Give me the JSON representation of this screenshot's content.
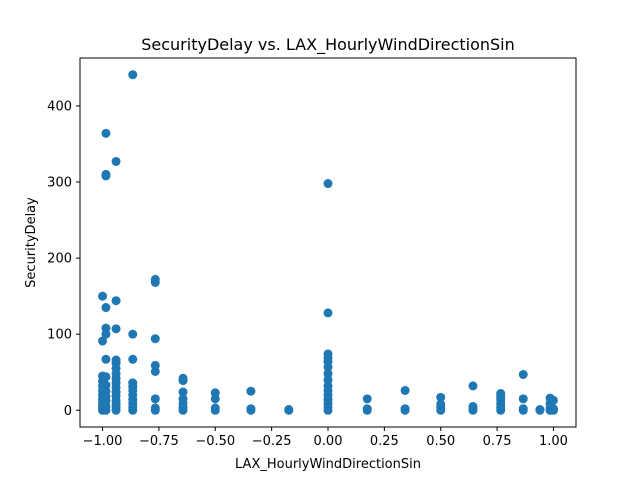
{
  "chart_data": {
    "type": "scatter",
    "title": "SecurityDelay vs. LAX_HourlyWindDirectionSin",
    "xlabel": "LAX_HourlyWindDirectionSin",
    "ylabel": "SecurityDelay",
    "xlim": [
      -1.1,
      1.1
    ],
    "ylim": [
      -22,
      463
    ],
    "xticks": [
      -1.0,
      -0.75,
      -0.5,
      -0.25,
      0.0,
      0.25,
      0.5,
      0.75,
      1.0
    ],
    "xtick_labels": [
      "−1.00",
      "−0.75",
      "−0.50",
      "−0.25",
      "0.00",
      "0.25",
      "0.50",
      "0.75",
      "1.00"
    ],
    "yticks": [
      0,
      100,
      200,
      300,
      400
    ],
    "ytick_labels": [
      "0",
      "100",
      "200",
      "300",
      "400"
    ],
    "grid": false,
    "legend": "none",
    "point_color": "#1f77b4",
    "series": [
      {
        "points": [
          [
            -1.0,
            0
          ],
          [
            -1.0,
            3
          ],
          [
            -1.0,
            6
          ],
          [
            -1.0,
            10
          ],
          [
            -1.0,
            15
          ],
          [
            -1.0,
            20
          ],
          [
            -1.0,
            26
          ],
          [
            -1.0,
            32
          ],
          [
            -1.0,
            38
          ],
          [
            -1.0,
            45
          ],
          [
            -1.0,
            91
          ],
          [
            -1.0,
            150
          ],
          [
            -0.985,
            0
          ],
          [
            -0.985,
            5
          ],
          [
            -0.985,
            12
          ],
          [
            -0.985,
            18
          ],
          [
            -0.985,
            25
          ],
          [
            -0.985,
            33
          ],
          [
            -0.985,
            44
          ],
          [
            -0.985,
            67
          ],
          [
            -0.985,
            100
          ],
          [
            -0.985,
            108
          ],
          [
            -0.985,
            135
          ],
          [
            -0.985,
            308
          ],
          [
            -0.985,
            310
          ],
          [
            -0.985,
            364
          ],
          [
            -0.94,
            0
          ],
          [
            -0.94,
            4
          ],
          [
            -0.94,
            8
          ],
          [
            -0.94,
            13
          ],
          [
            -0.94,
            19
          ],
          [
            -0.94,
            24
          ],
          [
            -0.94,
            30
          ],
          [
            -0.94,
            36
          ],
          [
            -0.94,
            42
          ],
          [
            -0.94,
            48
          ],
          [
            -0.94,
            55
          ],
          [
            -0.94,
            62
          ],
          [
            -0.94,
            66
          ],
          [
            -0.94,
            107
          ],
          [
            -0.94,
            144
          ],
          [
            -0.94,
            327
          ],
          [
            -0.866,
            0
          ],
          [
            -0.866,
            4
          ],
          [
            -0.866,
            9
          ],
          [
            -0.866,
            14
          ],
          [
            -0.866,
            20
          ],
          [
            -0.866,
            26
          ],
          [
            -0.866,
            31
          ],
          [
            -0.866,
            36
          ],
          [
            -0.866,
            67
          ],
          [
            -0.866,
            100
          ],
          [
            -0.866,
            441
          ],
          [
            -0.766,
            0
          ],
          [
            -0.766,
            3
          ],
          [
            -0.766,
            15
          ],
          [
            -0.766,
            51
          ],
          [
            -0.766,
            59
          ],
          [
            -0.766,
            94
          ],
          [
            -0.766,
            168
          ],
          [
            -0.766,
            172
          ],
          [
            -0.643,
            0
          ],
          [
            -0.643,
            4
          ],
          [
            -0.643,
            9
          ],
          [
            -0.643,
            15
          ],
          [
            -0.643,
            24
          ],
          [
            -0.643,
            39
          ],
          [
            -0.643,
            42
          ],
          [
            -0.5,
            0
          ],
          [
            -0.5,
            3
          ],
          [
            -0.5,
            15
          ],
          [
            -0.5,
            23
          ],
          [
            -0.342,
            0
          ],
          [
            -0.342,
            2
          ],
          [
            -0.342,
            25
          ],
          [
            -0.174,
            0
          ],
          [
            -0.174,
            1
          ],
          [
            0.0,
            0
          ],
          [
            0.0,
            4
          ],
          [
            0.0,
            9
          ],
          [
            0.0,
            14
          ],
          [
            0.0,
            20
          ],
          [
            0.0,
            26
          ],
          [
            0.0,
            32
          ],
          [
            0.0,
            40
          ],
          [
            0.0,
            48
          ],
          [
            0.0,
            57
          ],
          [
            0.0,
            64
          ],
          [
            0.0,
            69
          ],
          [
            0.0,
            74
          ],
          [
            0.0,
            128
          ],
          [
            0.0,
            298
          ],
          [
            0.174,
            0
          ],
          [
            0.174,
            2
          ],
          [
            0.174,
            15
          ],
          [
            0.342,
            0
          ],
          [
            0.342,
            2
          ],
          [
            0.342,
            26
          ],
          [
            0.5,
            0
          ],
          [
            0.5,
            4
          ],
          [
            0.5,
            8
          ],
          [
            0.5,
            17
          ],
          [
            0.643,
            0
          ],
          [
            0.643,
            2
          ],
          [
            0.643,
            5
          ],
          [
            0.643,
            32
          ],
          [
            0.766,
            0
          ],
          [
            0.766,
            4
          ],
          [
            0.766,
            9
          ],
          [
            0.766,
            14
          ],
          [
            0.766,
            18
          ],
          [
            0.766,
            22
          ],
          [
            0.866,
            0
          ],
          [
            0.866,
            2
          ],
          [
            0.866,
            15
          ],
          [
            0.866,
            47
          ],
          [
            0.94,
            0
          ],
          [
            0.94,
            1
          ],
          [
            0.985,
            0
          ],
          [
            0.985,
            3
          ],
          [
            0.985,
            9
          ],
          [
            0.985,
            16
          ],
          [
            1.0,
            0
          ],
          [
            1.0,
            2
          ],
          [
            1.0,
            13
          ]
        ]
      }
    ]
  }
}
